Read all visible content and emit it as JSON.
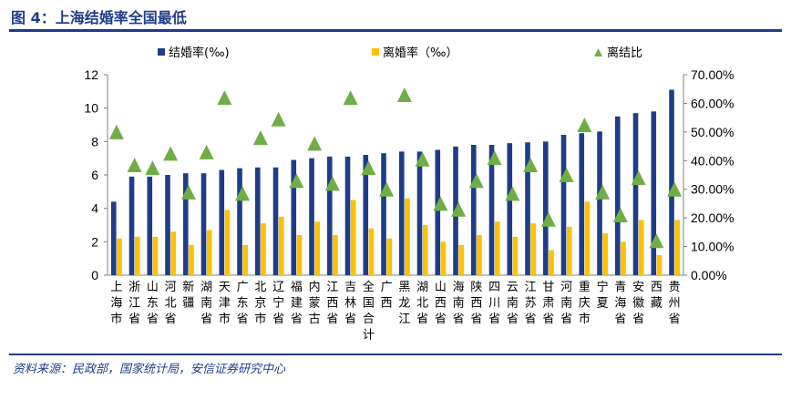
{
  "header": {
    "title": "图 4：上海结婚率全国最低"
  },
  "footer": {
    "source": "资料来源：民政部，国家统计局，安信证券研究中心"
  },
  "colors": {
    "marriage": "#1f3c88",
    "divorce": "#ffc000",
    "ratio": "#70ad47",
    "title": "#1f3c88"
  },
  "chart_data": {
    "type": "bar",
    "legend_position": "top",
    "grid": false,
    "categories": [
      "上海市",
      "浙江省",
      "山东省",
      "河北省",
      "新疆",
      "湖南省",
      "天津市",
      "广东省",
      "北京市",
      "辽宁省",
      "福建省",
      "内蒙古",
      "江西省",
      "吉林省",
      "全国合计",
      "广西",
      "黑龙江",
      "湖北省",
      "山西省",
      "海南省",
      "陕西省",
      "四川省",
      "云南省",
      "江苏省",
      "甘肃省",
      "河南省",
      "重庆市",
      "宁夏",
      "青海省",
      "安徽省",
      "西藏",
      "贵州省"
    ],
    "y_left": {
      "min": 0,
      "max": 12,
      "ticks": [
        "0",
        "2",
        "4",
        "6",
        "8",
        "10",
        "12"
      ]
    },
    "y_right": {
      "min": 0,
      "max": 70,
      "ticks": [
        "0.00%",
        "10.00%",
        "20.00%",
        "30.00%",
        "40.00%",
        "50.00%",
        "60.00%",
        "70.00%"
      ]
    },
    "series": [
      {
        "name": "结婚率(‰)",
        "kind": "bar",
        "axis": "left",
        "values": [
          4.4,
          5.9,
          5.9,
          6.0,
          6.1,
          6.1,
          6.3,
          6.4,
          6.45,
          6.45,
          6.9,
          7.0,
          7.1,
          7.1,
          7.2,
          7.3,
          7.4,
          7.4,
          7.5,
          7.7,
          7.8,
          7.8,
          7.9,
          7.95,
          8.0,
          8.4,
          8.5,
          8.6,
          9.5,
          9.7,
          9.8,
          11.1
        ]
      },
      {
        "name": "离婚率（‰）",
        "kind": "bar",
        "axis": "left",
        "values": [
          2.2,
          2.3,
          2.3,
          2.6,
          1.8,
          2.7,
          3.9,
          1.8,
          3.1,
          3.5,
          2.4,
          3.2,
          2.4,
          4.5,
          2.8,
          2.2,
          4.6,
          3.0,
          2.0,
          1.8,
          2.4,
          3.2,
          2.3,
          3.1,
          1.5,
          2.9,
          4.4,
          2.5,
          2.0,
          3.3,
          1.2,
          3.3
        ]
      },
      {
        "name": "离结比",
        "kind": "marker",
        "axis": "right",
        "values": [
          50.0,
          38.5,
          37.5,
          42.5,
          29.0,
          43.0,
          62.0,
          28.5,
          48.0,
          54.5,
          33.0,
          46.0,
          32.0,
          62.0,
          37.5,
          30.0,
          63.0,
          40.5,
          25.0,
          23.0,
          33.0,
          41.0,
          28.5,
          38.5,
          19.5,
          35.0,
          52.5,
          29.0,
          21.0,
          34.0,
          12.0,
          30.0
        ]
      }
    ]
  }
}
